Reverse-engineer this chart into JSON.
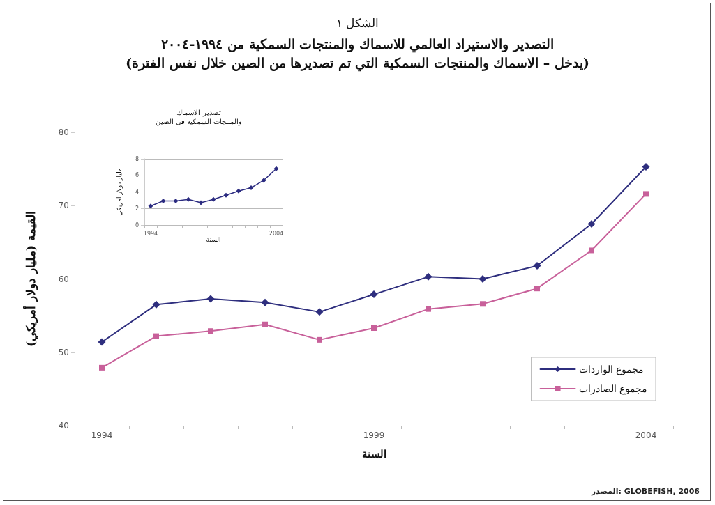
{
  "chart_data": [
    {
      "type": "line",
      "title": "الشكل ١",
      "subtitle": "التصدير والاستيراد العالمي للاسماك والمنتجات السمكية من ١٩٩٤-٢٠٠٤\n(يدخل – الاسماك والمنتجات السمكية التي تم تصديرها من الصين خلال نفس الفترة)",
      "xlabel": "السنة",
      "ylabel": "القيمة (مليار دولار أمريكي)",
      "categories": [
        "1994",
        null,
        null,
        null,
        null,
        "1999",
        null,
        null,
        null,
        null,
        "2004"
      ],
      "series": [
        {
          "name": "مجموع الواردات",
          "color": "#2e2e7e",
          "marker": "diamond",
          "values": [
            51.4,
            56.5,
            57.3,
            56.8,
            55.5,
            57.9,
            60.3,
            60.0,
            61.8,
            67.5,
            75.3
          ]
        },
        {
          "name": "مجموع الصادرات",
          "color": "#c8609a",
          "marker": "square",
          "values": [
            47.9,
            52.2,
            52.9,
            53.8,
            51.7,
            53.3,
            55.9,
            56.6,
            58.7,
            63.9,
            71.6
          ]
        }
      ],
      "ylim": [
        40,
        80
      ],
      "yticks": [
        40,
        50,
        60,
        70,
        80
      ],
      "grid": false,
      "legend": "bottom right",
      "line_style": "solid",
      "annotations": [
        "المصدر: GLOBEFISH, 2006"
      ]
    },
    {
      "type": "line",
      "title": "تصدير الاسماك\nوالمنتجات السمكية في الصين",
      "xlabel": "السنة",
      "ylabel": "مليار دولار امريكي",
      "categories": [
        "1994",
        null,
        null,
        null,
        null,
        null,
        null,
        null,
        null,
        null,
        "2004"
      ],
      "series": [
        {
          "color": "#2b2b80",
          "marker": "diamond",
          "values": [
            2.3,
            2.9,
            2.9,
            3.1,
            2.7,
            3.1,
            3.6,
            4.1,
            4.5,
            5.4,
            6.8
          ]
        }
      ],
      "ylim": [
        0,
        8
      ],
      "yticks": [
        0,
        2,
        4,
        6,
        8
      ],
      "grid": "y",
      "legend": false,
      "line_style": "solid"
    }
  ]
}
